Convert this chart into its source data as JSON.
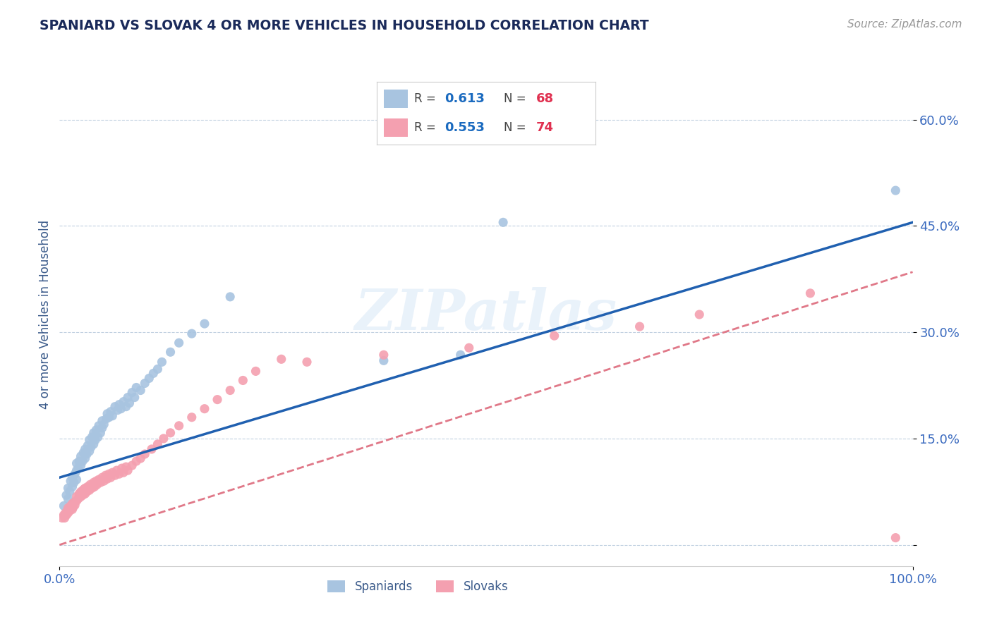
{
  "title": "SPANIARD VS SLOVAK 4 OR MORE VEHICLES IN HOUSEHOLD CORRELATION CHART",
  "source": "Source: ZipAtlas.com",
  "ylabel": "4 or more Vehicles in Household",
  "xlim": [
    0,
    1.0
  ],
  "ylim": [
    -0.03,
    0.68
  ],
  "yticks": [
    0.0,
    0.15,
    0.3,
    0.45,
    0.6
  ],
  "ytick_labels": [
    "",
    "15.0%",
    "30.0%",
    "45.0%",
    "60.0%"
  ],
  "spaniard_color": "#a8c4e0",
  "slovak_color": "#f4a0b0",
  "line_spaniard_color": "#2060b0",
  "line_slovak_color": "#e07888",
  "background_color": "#ffffff",
  "grid_color": "#c0d0e0",
  "title_color": "#1a2a5a",
  "axis_label_color": "#3a5a8a",
  "tick_color": "#3a6abf",
  "r_value_color": "#1a6abf",
  "n_value_color": "#e03050",
  "legend_r1": "R = ",
  "legend_v1": "0.613",
  "legend_n1": "N = ",
  "legend_nv1": "68",
  "legend_r2": "R = ",
  "legend_v2": "0.553",
  "legend_n2": "N = ",
  "legend_nv2": "74",
  "spaniard_x": [
    0.005,
    0.008,
    0.01,
    0.01,
    0.012,
    0.013,
    0.015,
    0.015,
    0.017,
    0.018,
    0.02,
    0.02,
    0.02,
    0.022,
    0.023,
    0.025,
    0.025,
    0.027,
    0.028,
    0.03,
    0.03,
    0.032,
    0.033,
    0.035,
    0.035,
    0.037,
    0.038,
    0.04,
    0.04,
    0.042,
    0.043,
    0.045,
    0.046,
    0.048,
    0.05,
    0.05,
    0.052,
    0.055,
    0.056,
    0.058,
    0.06,
    0.062,
    0.065,
    0.068,
    0.07,
    0.072,
    0.075,
    0.078,
    0.08,
    0.082,
    0.085,
    0.088,
    0.09,
    0.095,
    0.1,
    0.105,
    0.11,
    0.115,
    0.12,
    0.13,
    0.14,
    0.155,
    0.17,
    0.2,
    0.38,
    0.47,
    0.52,
    0.98
  ],
  "spaniard_y": [
    0.055,
    0.07,
    0.065,
    0.08,
    0.075,
    0.09,
    0.082,
    0.095,
    0.088,
    0.1,
    0.092,
    0.105,
    0.115,
    0.108,
    0.118,
    0.112,
    0.125,
    0.118,
    0.13,
    0.122,
    0.135,
    0.128,
    0.14,
    0.132,
    0.148,
    0.138,
    0.152,
    0.142,
    0.158,
    0.148,
    0.162,
    0.152,
    0.168,
    0.158,
    0.165,
    0.175,
    0.17,
    0.178,
    0.185,
    0.18,
    0.188,
    0.182,
    0.195,
    0.19,
    0.198,
    0.192,
    0.202,
    0.195,
    0.208,
    0.2,
    0.215,
    0.208,
    0.222,
    0.218,
    0.228,
    0.235,
    0.242,
    0.248,
    0.258,
    0.272,
    0.285,
    0.298,
    0.312,
    0.35,
    0.26,
    0.268,
    0.455,
    0.5
  ],
  "slovak_x": [
    0.003,
    0.005,
    0.006,
    0.007,
    0.008,
    0.009,
    0.01,
    0.01,
    0.012,
    0.013,
    0.015,
    0.015,
    0.016,
    0.017,
    0.018,
    0.02,
    0.02,
    0.022,
    0.023,
    0.025,
    0.025,
    0.027,
    0.028,
    0.03,
    0.03,
    0.032,
    0.033,
    0.035,
    0.036,
    0.038,
    0.04,
    0.041,
    0.043,
    0.044,
    0.046,
    0.048,
    0.05,
    0.052,
    0.054,
    0.056,
    0.058,
    0.06,
    0.062,
    0.065,
    0.067,
    0.07,
    0.073,
    0.075,
    0.078,
    0.08,
    0.085,
    0.09,
    0.095,
    0.1,
    0.108,
    0.115,
    0.122,
    0.13,
    0.14,
    0.155,
    0.17,
    0.185,
    0.2,
    0.215,
    0.23,
    0.26,
    0.29,
    0.38,
    0.48,
    0.58,
    0.68,
    0.75,
    0.88,
    0.98
  ],
  "slovak_y": [
    0.038,
    0.042,
    0.038,
    0.045,
    0.042,
    0.048,
    0.045,
    0.052,
    0.048,
    0.055,
    0.05,
    0.058,
    0.053,
    0.06,
    0.056,
    0.062,
    0.068,
    0.065,
    0.072,
    0.068,
    0.075,
    0.07,
    0.078,
    0.072,
    0.08,
    0.075,
    0.082,
    0.077,
    0.085,
    0.08,
    0.088,
    0.082,
    0.09,
    0.085,
    0.092,
    0.088,
    0.095,
    0.09,
    0.098,
    0.093,
    0.1,
    0.095,
    0.102,
    0.098,
    0.105,
    0.1,
    0.108,
    0.102,
    0.11,
    0.105,
    0.112,
    0.118,
    0.122,
    0.128,
    0.135,
    0.142,
    0.15,
    0.158,
    0.168,
    0.18,
    0.192,
    0.205,
    0.218,
    0.232,
    0.245,
    0.262,
    0.258,
    0.268,
    0.278,
    0.295,
    0.308,
    0.325,
    0.355,
    0.01
  ],
  "line_sp_x0": 0.0,
  "line_sp_y0": 0.095,
  "line_sp_x1": 1.0,
  "line_sp_y1": 0.455,
  "line_sk_x0": 0.0,
  "line_sk_y0": 0.0,
  "line_sk_x1": 1.0,
  "line_sk_y1": 0.385
}
